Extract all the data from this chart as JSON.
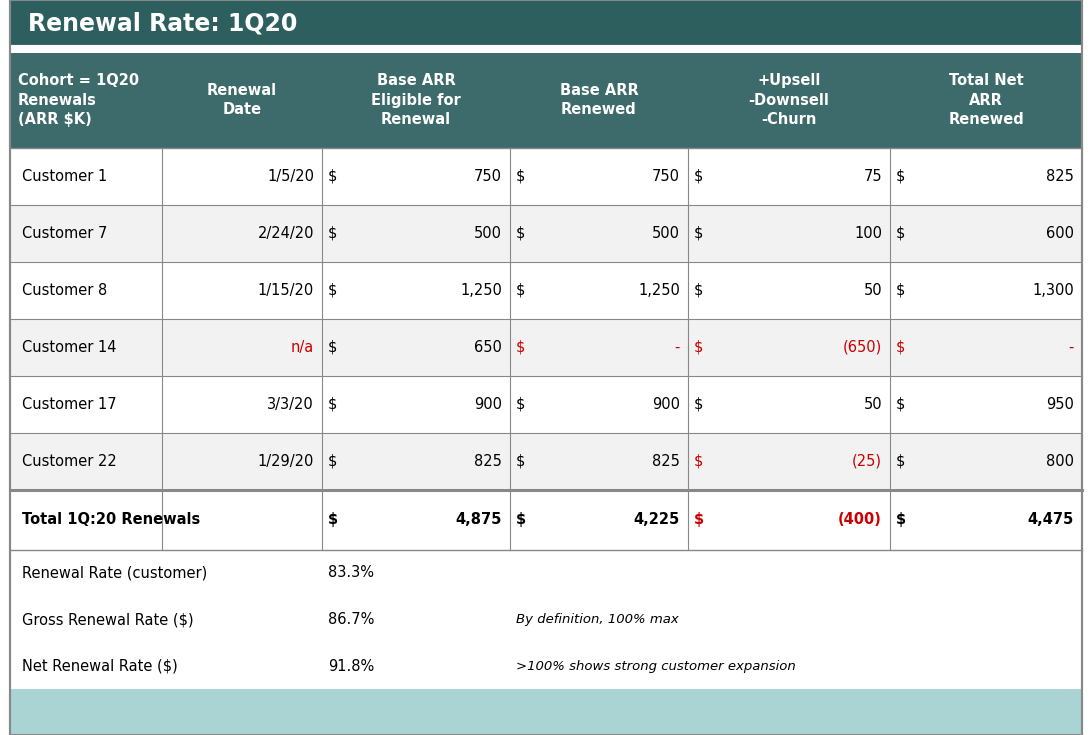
{
  "title": "Renewal Rate: 1Q20",
  "title_bg": "#2d5f5f",
  "title_color": "#ffffff",
  "header_bg": "#3d6b6b",
  "header_color": "#ffffff",
  "rows": [
    [
      "Customer 1",
      "1/5/20",
      "$",
      "750",
      "$",
      "750",
      "$",
      "75",
      "$",
      "825"
    ],
    [
      "Customer 7",
      "2/24/20",
      "$",
      "500",
      "$",
      "500",
      "$",
      "100",
      "$",
      "600"
    ],
    [
      "Customer 8",
      "1/15/20",
      "$",
      "1,250",
      "$",
      "1,250",
      "$",
      "50",
      "$",
      "1,300"
    ],
    [
      "Customer 14",
      "n/a",
      "$",
      "650",
      "$",
      "-",
      "$",
      "(650)",
      "$",
      "-"
    ],
    [
      "Customer 17",
      "3/3/20",
      "$",
      "900",
      "$",
      "900",
      "$",
      "50",
      "$",
      "950"
    ],
    [
      "Customer 22",
      "1/29/20",
      "$",
      "825",
      "$",
      "825",
      "$",
      "(25)",
      "$",
      "800"
    ]
  ],
  "total_row": [
    "Total 1Q:20 Renewals",
    "",
    "$",
    "4,875",
    "$",
    "4,225",
    "$",
    "(400)",
    "$",
    "4,475"
  ],
  "red_date_rows": [
    3
  ],
  "red_base_renewed_rows": [
    3
  ],
  "red_upsell_rows": [
    3,
    5
  ],
  "red_total_net_rows": [
    3
  ],
  "summary_rows": [
    {
      "label": "Renewal Rate (customer)",
      "value": "83.3%",
      "note": ""
    },
    {
      "label": "Gross Renewal Rate ($)",
      "value": "86.7%",
      "note": "By definition, 100% max"
    },
    {
      "label": "Net Renewal Rate ($)",
      "value": "91.8%",
      "note": ">100% shows strong customer expansion"
    }
  ],
  "footer_bg": "#aad4d4",
  "border_color": "#888888",
  "black": "#000000",
  "red": "#cc0000",
  "row_bg_white": "#ffffff",
  "row_bg_gray": "#f2f2f2",
  "fig_width": 10.92,
  "fig_height": 7.35,
  "dpi": 100
}
